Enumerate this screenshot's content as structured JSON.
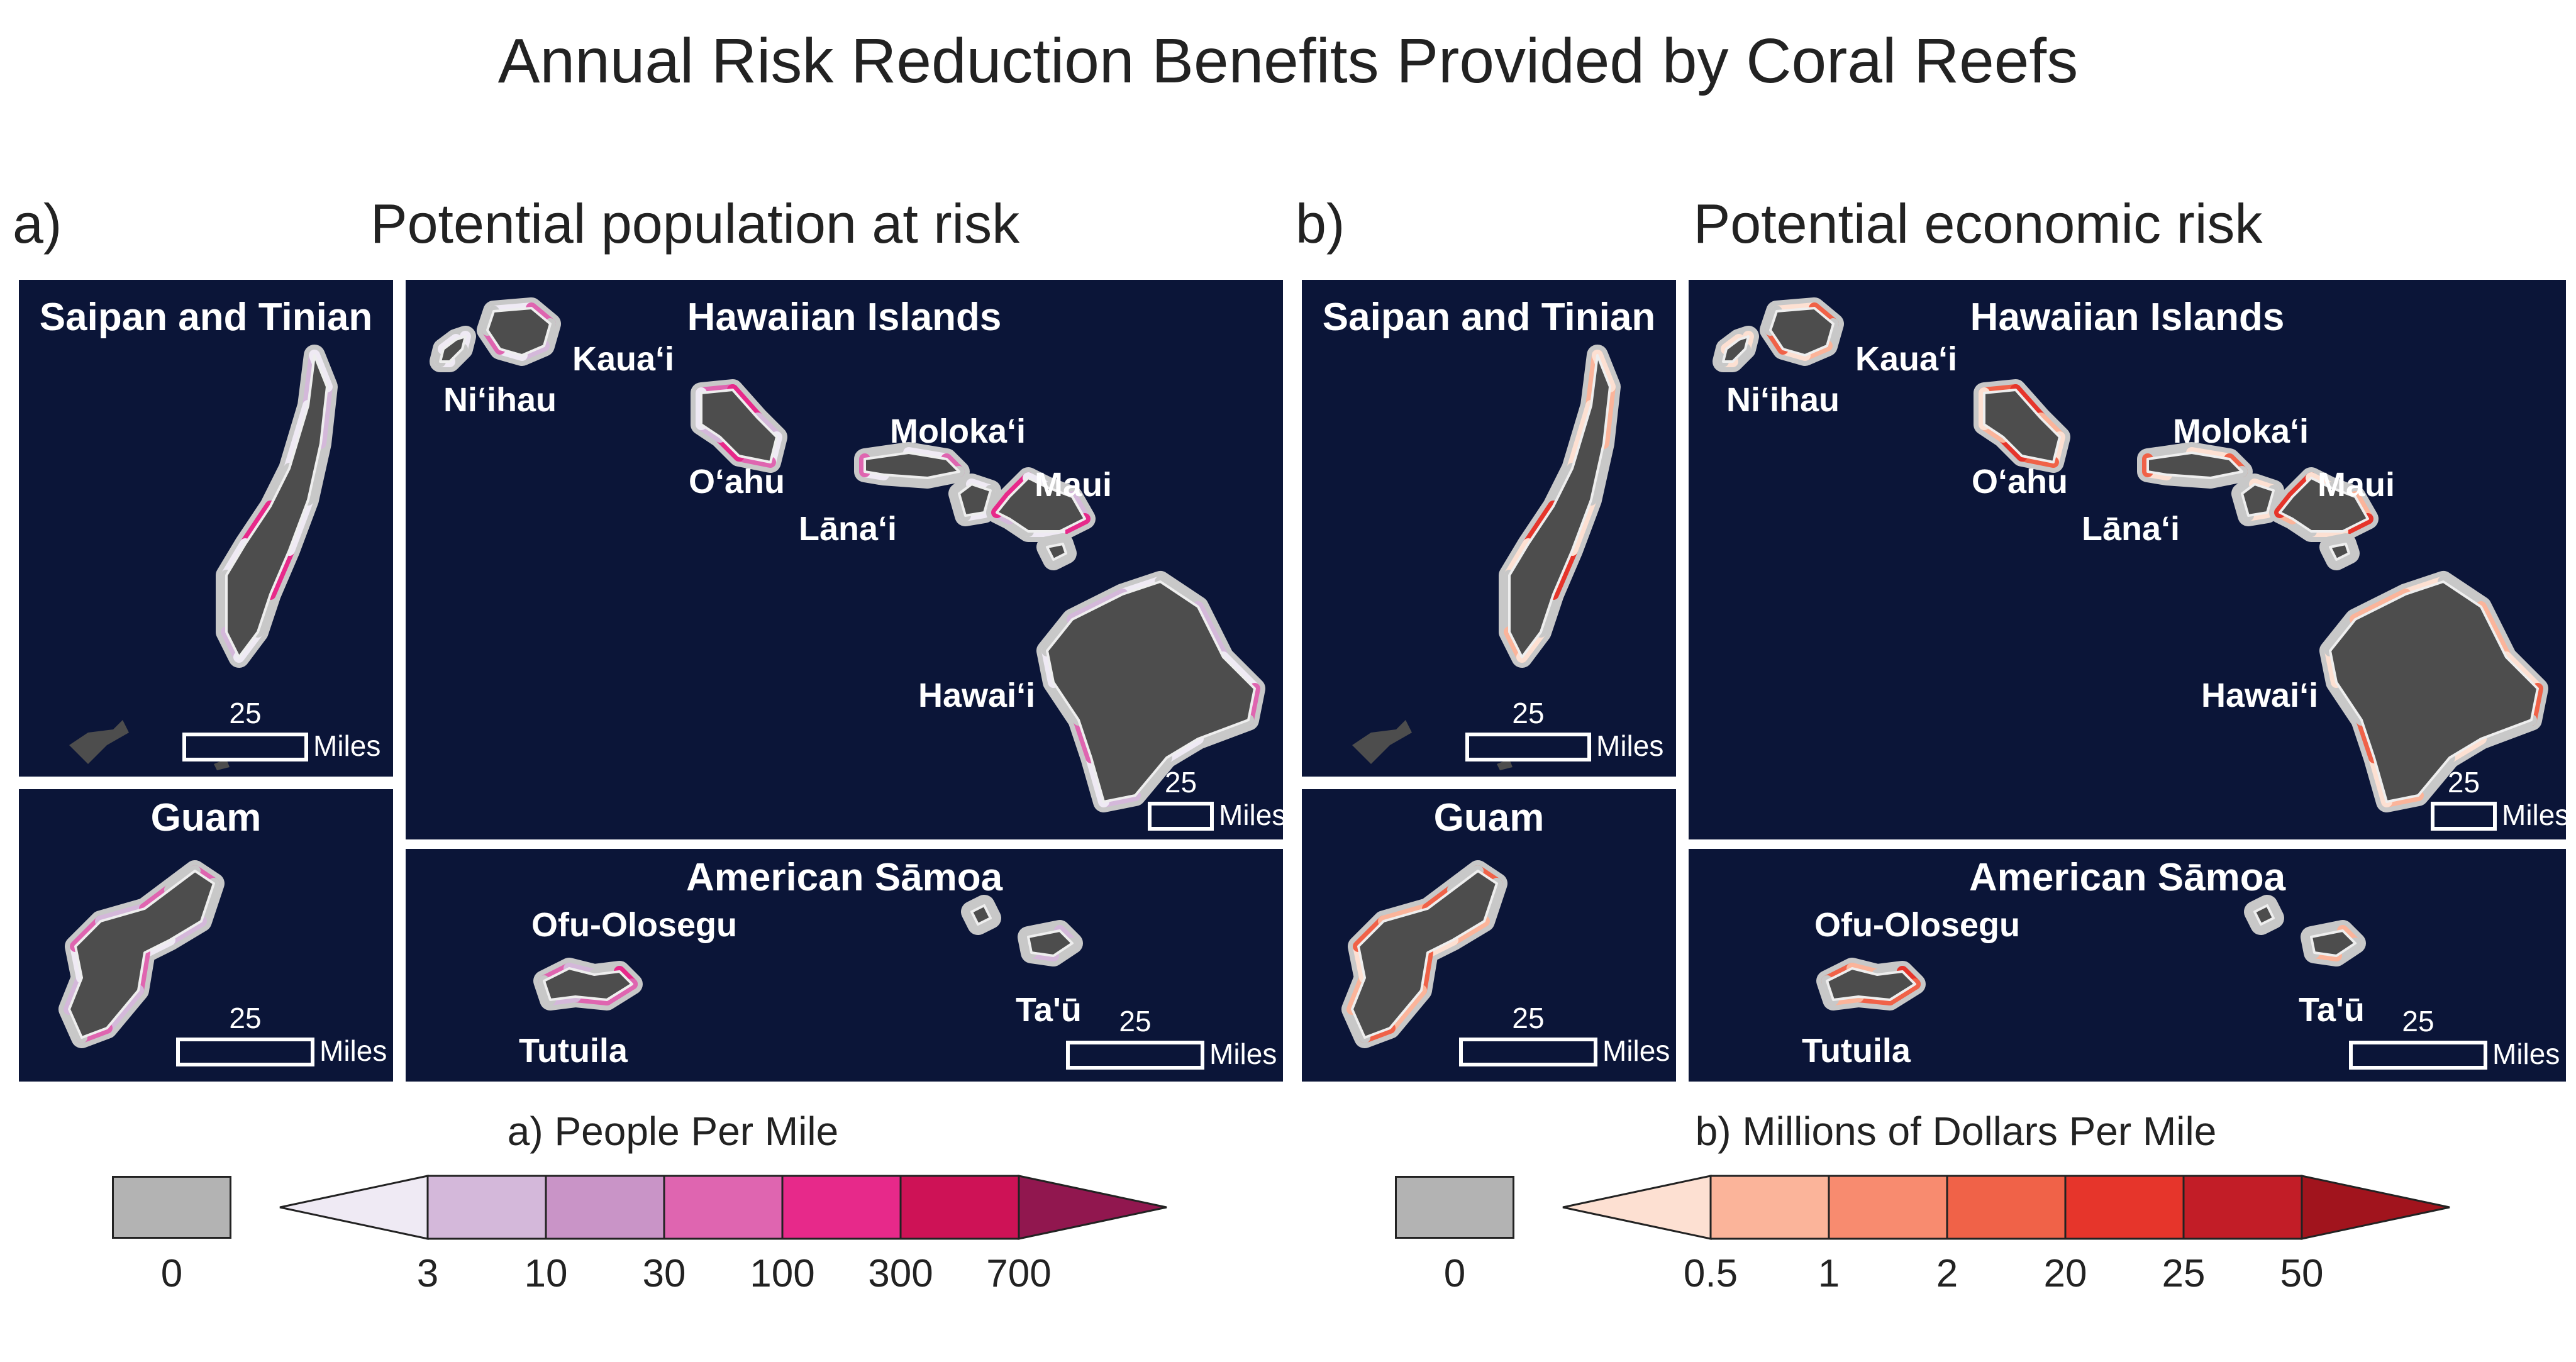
{
  "title": "Annual Risk Reduction Benefits Provided by Coral Reefs",
  "panels": [
    {
      "letter": "a)",
      "title": "Potential population at risk",
      "insets": {
        "saipan": {
          "title": "Saipan and Tinian",
          "scale_value": "25",
          "scale_unit": "Miles"
        },
        "guam": {
          "title": "Guam",
          "scale_value": "25",
          "scale_unit": "Miles"
        },
        "hawaii": {
          "title": "Hawaiian Islands",
          "scale_value": "25",
          "scale_unit": "Miles",
          "labels": [
            "Kauaʻi",
            "Niʻihau",
            "Oʻahu",
            "Molokaʻi",
            "Maui",
            "Lānaʻi",
            "Hawaiʻi"
          ]
        },
        "samoa": {
          "title": "American Sāmoa",
          "scale_value": "25",
          "scale_unit": "Miles",
          "labels": [
            "Ofu-Olosegu",
            "Tutuila",
            "Ta'ū"
          ]
        }
      },
      "legend": {
        "title": "a) People Per Mile",
        "zero_label": "0",
        "zero_color": "#b3b3b3",
        "ticks": [
          "3",
          "10",
          "30",
          "100",
          "300",
          "700"
        ],
        "colors": [
          "#efeaf4",
          "#d4b8da",
          "#c994c7",
          "#df65b0",
          "#e7298a",
          "#ce1256",
          "#91174f"
        ]
      }
    },
    {
      "letter": "b)",
      "title": "Potential economic risk",
      "insets": {
        "saipan": {
          "title": "Saipan and Tinian",
          "scale_value": "25",
          "scale_unit": "Miles"
        },
        "guam": {
          "title": "Guam",
          "scale_value": "25",
          "scale_unit": "Miles"
        },
        "hawaii": {
          "title": "Hawaiian Islands",
          "scale_value": "25",
          "scale_unit": "Miles",
          "labels": [
            "Kauaʻi",
            "Niʻihau",
            "Oʻahu",
            "Molokaʻi",
            "Maui",
            "Lānaʻi",
            "Hawaiʻi"
          ]
        },
        "samoa": {
          "title": "American Sāmoa",
          "scale_value": "25",
          "scale_unit": "Miles",
          "labels": [
            "Ofu-Olosegu",
            "Tutuila",
            "Ta'ū"
          ]
        }
      },
      "legend": {
        "title": "b) Millions of Dollars Per Mile",
        "zero_label": "0",
        "zero_color": "#b3b3b3",
        "ticks": [
          "0.5",
          "1",
          "2",
          "20",
          "25",
          "50"
        ],
        "colors": [
          "#fde0d2",
          "#fbb49a",
          "#f88b6f",
          "#f06248",
          "#e6352b",
          "#c21d27",
          "#a1141d"
        ]
      }
    }
  ]
}
